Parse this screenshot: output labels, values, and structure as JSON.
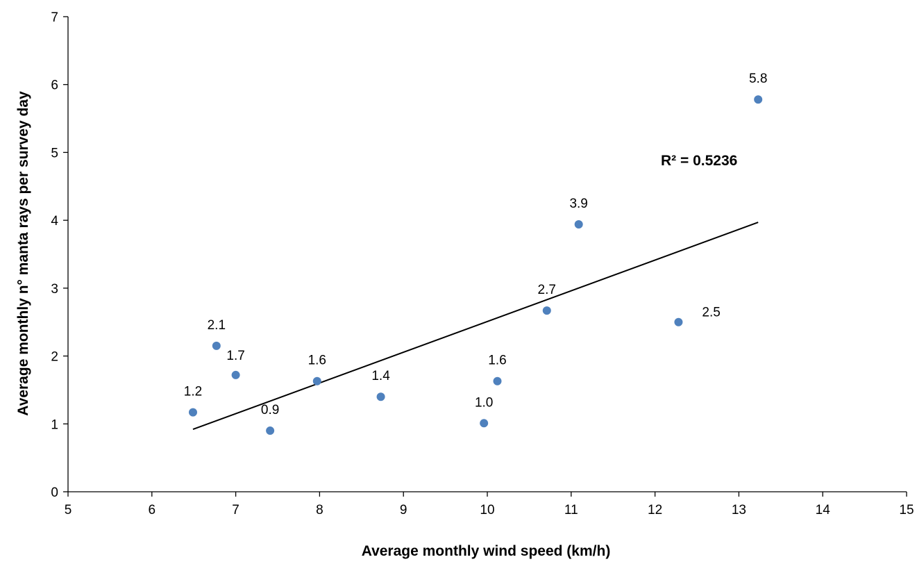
{
  "chart_data": {
    "type": "scatter",
    "title": "",
    "xlabel": "Average monthly wind speed (km/h)",
    "ylabel": "Average monthly n° manta rays per survey day",
    "xlim": [
      5,
      15
    ],
    "ylim": [
      0,
      7
    ],
    "x_ticks": [
      5,
      6,
      7,
      8,
      9,
      10,
      11,
      12,
      13,
      14,
      15
    ],
    "y_ticks": [
      0,
      1,
      2,
      3,
      4,
      5,
      6,
      7
    ],
    "grid": false,
    "legend": "none",
    "marker_color": "#4f81bd",
    "points": [
      {
        "x": 6.49,
        "y": 1.17,
        "label": "1.2"
      },
      {
        "x": 6.77,
        "y": 2.15,
        "label": "2.1"
      },
      {
        "x": 7.0,
        "y": 1.72,
        "label": "1.7"
      },
      {
        "x": 7.41,
        "y": 0.9,
        "label": "0.9"
      },
      {
        "x": 7.97,
        "y": 1.63,
        "label": "1.6"
      },
      {
        "x": 8.73,
        "y": 1.4,
        "label": "1.4"
      },
      {
        "x": 9.96,
        "y": 1.01,
        "label": "1.0"
      },
      {
        "x": 10.12,
        "y": 1.63,
        "label": "1.6"
      },
      {
        "x": 10.71,
        "y": 2.67,
        "label": "2.7"
      },
      {
        "x": 11.09,
        "y": 3.94,
        "label": "3.9"
      },
      {
        "x": 12.28,
        "y": 2.5,
        "label": "2.5"
      },
      {
        "x": 13.23,
        "y": 5.78,
        "label": "5.8"
      }
    ],
    "trendline": {
      "type": "linear",
      "color": "#000000",
      "x_start": 6.49,
      "y_start": 0.92,
      "x_end": 13.23,
      "y_end": 3.97
    },
    "annotation": "R² = 0.5236"
  }
}
